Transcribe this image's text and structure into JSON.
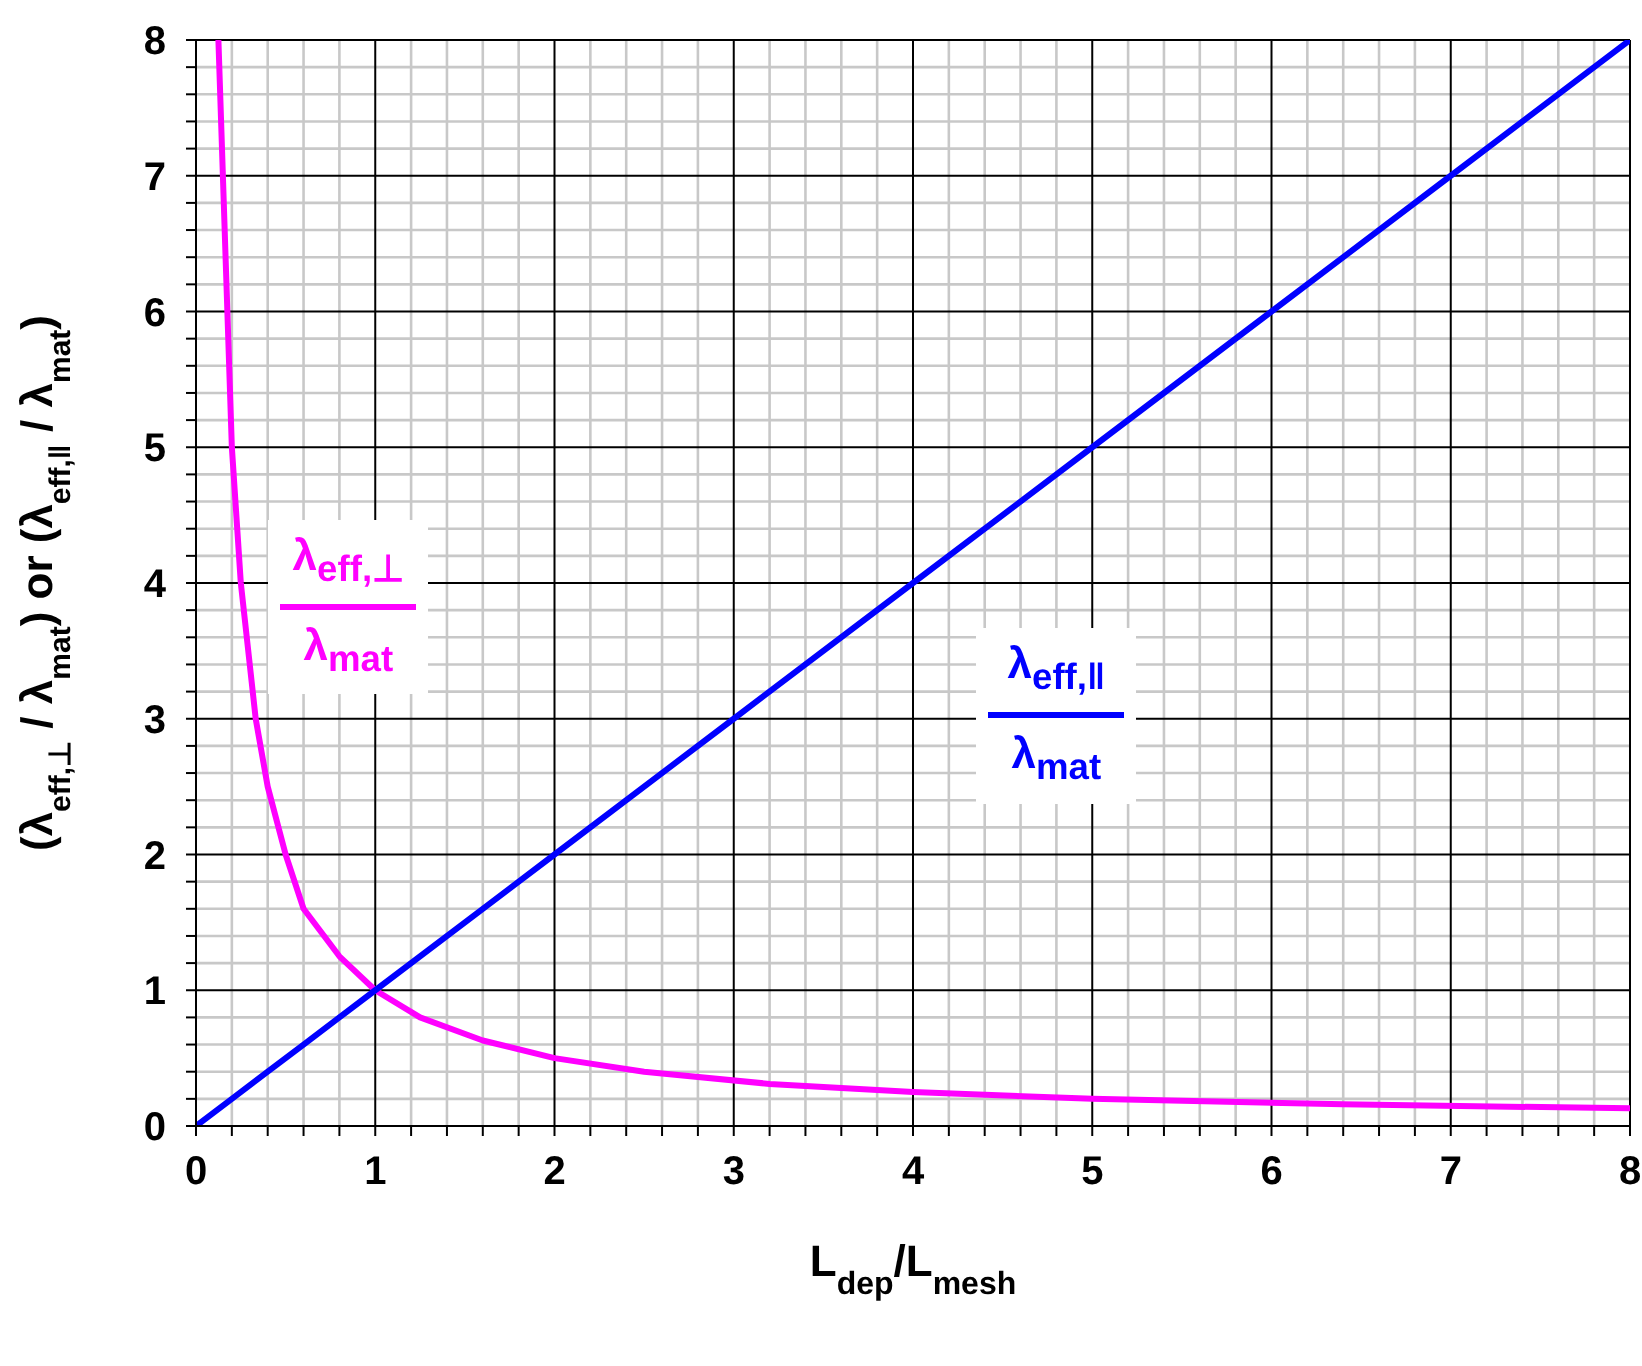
{
  "chart_data": {
    "type": "line",
    "xlabel": "L$_{dep}$/L$_{mesh}$",
    "ylabel": "(λ$_{eff,⊥}$ / λ$_{mat}$) or (λ$_{eff,‖}$ / λ$_{mat}$)",
    "series": [
      {
        "name": "λ$_{eff,⊥}$\nλ$_{mat}$",
        "color": "#ff00ff",
        "x": [
          0.125,
          0.2,
          0.25,
          0.333,
          0.4,
          0.5,
          0.6,
          0.8,
          1,
          1.25,
          1.6,
          2,
          2.5,
          3.2,
          4,
          5,
          6.4,
          8
        ],
        "values": [
          8,
          5,
          4,
          3,
          2.5,
          2,
          1.6,
          1.25,
          1,
          0.8,
          0.63,
          0.5,
          0.4,
          0.31,
          0.25,
          0.2,
          0.16,
          0.13
        ]
      },
      {
        "name": "λ$_{eff,‖}$\nλ$_{mat}$",
        "color": "#0000ff",
        "x": [
          0,
          0.2,
          0.4,
          0.6,
          0.8,
          1,
          1.6,
          2,
          3,
          4,
          5,
          6,
          7,
          8
        ],
        "values": [
          0,
          0.2,
          0.4,
          0.6,
          0.8,
          1,
          1.6,
          2,
          3,
          4,
          5,
          6,
          7,
          8
        ]
      }
    ],
    "xlim": [
      0,
      8
    ],
    "ylim": [
      0,
      8
    ],
    "xticks": [
      0,
      {
        "value": 0.2,
        "label": null
      },
      {
        "value": 0.4,
        "label": null
      },
      {
        "value": 0.6,
        "label": null
      },
      {
        "value": 0.8,
        "label": null
      },
      1,
      {
        "value": 1.2,
        "label": null
      },
      {
        "value": 1.4,
        "label": null
      },
      {
        "value": 1.6,
        "label": null
      },
      {
        "value": 1.8,
        "label": null
      },
      2,
      {
        "value": 2.2,
        "label": null
      },
      {
        "value": 2.4,
        "label": null
      },
      {
        "value": 2.6,
        "label": null
      },
      {
        "value": 2.8,
        "label": null
      },
      3,
      {
        "value": 3.2,
        "label": null
      },
      {
        "value": 3.4,
        "label": null
      },
      {
        "value": 3.6,
        "label": null
      },
      {
        "value": 3.8,
        "label": null
      },
      4,
      {
        "value": 4.2,
        "label": null
      },
      {
        "value": 4.4,
        "label": null
      },
      {
        "value": 4.6,
        "label": null
      },
      {
        "value": 4.8,
        "label": null
      },
      5,
      {
        "value": 5.2,
        "label": null
      },
      {
        "value": 5.4,
        "label": null
      },
      {
        "value": 5.6,
        "label": null
      },
      {
        "value": 5.8,
        "label": null
      },
      6,
      {
        "value": 6.2,
        "label": null
      },
      {
        "value": 6.4,
        "label": null
      },
      {
        "value": 6.6,
        "label": null
      },
      {
        "value": 6.8,
        "label": null
      },
      7,
      {
        "value": 7.2,
        "label": null
      },
      {
        "value": 7.4,
        "label": null
      },
      {
        "value": 7.6,
        "label": null
      },
      {
        "value": 7.8,
        "label": null
      },
      8
    ],
    "yticks": [
      0,
      {
        "value": 0.2,
        "label": null
      },
      {
        "value": 0.4,
        "label": null
      },
      {
        "value": 0.6,
        "label": null
      },
      {
        "value": 0.8,
        "label": null
      },
      1,
      {
        "value": 1.2,
        "label": null
      },
      {
        "value": 1.4,
        "label": null
      },
      {
        "value": 1.6,
        "label": null
      },
      {
        "value": 1.8,
        "label": null
      },
      2,
      {
        "value": 2.2,
        "label": null
      },
      {
        "value": 2.4,
        "label": null
      },
      {
        "value": 2.6,
        "label": null
      },
      {
        "value": 2.8,
        "label": null
      },
      3,
      {
        "value": 3.2,
        "label": null
      },
      {
        "value": 3.4,
        "label": null
      },
      {
        "value": 3.6,
        "label": null
      },
      {
        "value": 3.8,
        "label": null
      },
      4,
      {
        "value": 4.2,
        "label": null
      },
      {
        "value": 4.4,
        "label": null
      },
      {
        "value": 4.6,
        "label": null
      },
      {
        "value": 4.8,
        "label": null
      },
      5,
      {
        "value": 5.2,
        "label": null
      },
      {
        "value": 5.4,
        "label": null
      },
      {
        "value": 5.6,
        "label": null
      },
      {
        "value": 5.8,
        "label": null
      },
      6,
      {
        "value": 6.2,
        "label": null
      },
      {
        "value": 6.4,
        "label": null
      },
      {
        "value": 6.6,
        "label": null
      },
      {
        "value": 6.8,
        "label": null
      },
      7,
      {
        "value": 7.2,
        "label": null
      },
      {
        "value": 7.4,
        "label": null
      },
      {
        "value": 7.6,
        "label": null
      },
      {
        "value": 7.8,
        "label": null
      },
      8
    ],
    "grid": true,
    "legend": false,
    "marker": "none",
    "line_style": "solid"
  }
}
